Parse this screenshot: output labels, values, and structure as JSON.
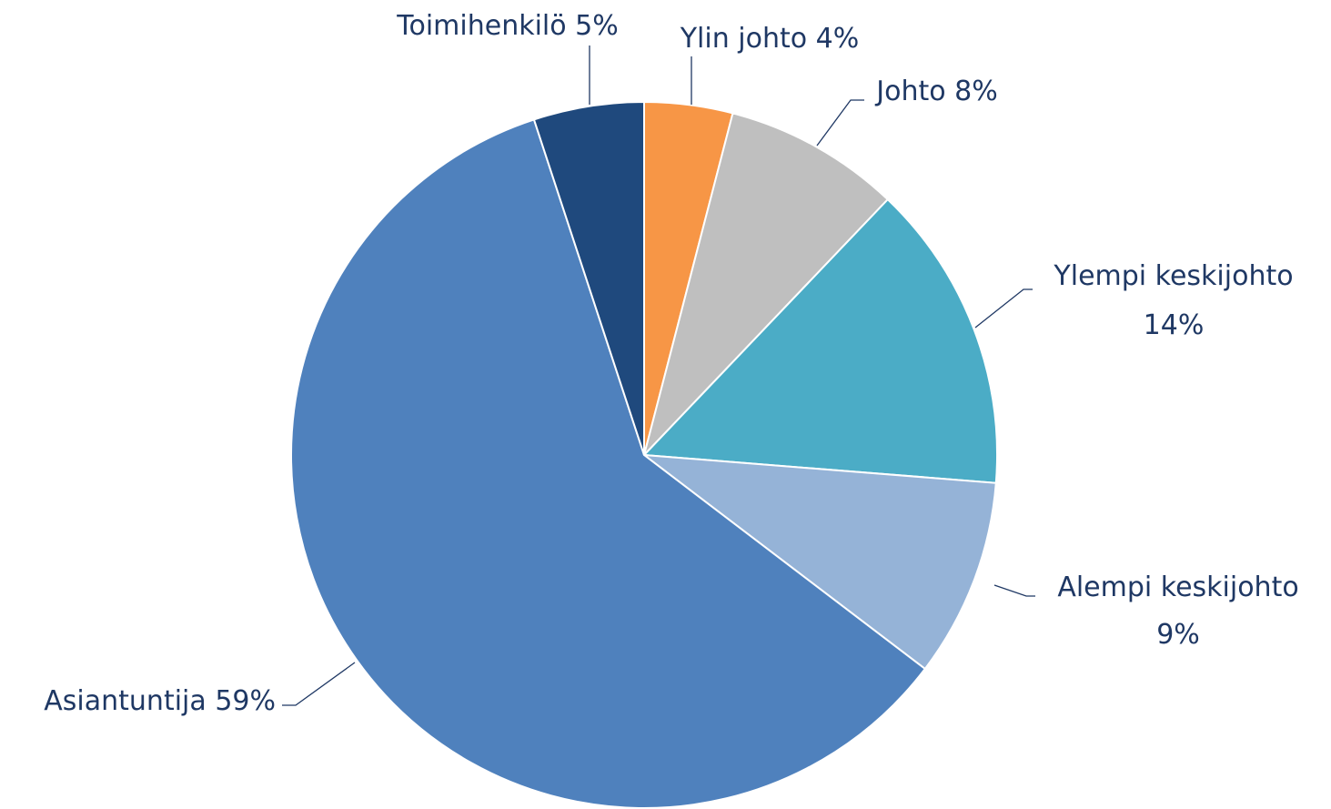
{
  "chart_data": {
    "type": "pie",
    "categories": [
      "Ylin johto",
      "Johto",
      "Ylempi keskijohto",
      "Alempi keskijohto",
      "Asiantuntija",
      "Toimihenkilö"
    ],
    "values": [
      4,
      8,
      14,
      9,
      59,
      5
    ],
    "value_labels": [
      "4%",
      "8%",
      "14%",
      "9%",
      "59%",
      "5%"
    ],
    "colors": [
      "#f79646",
      "#bfbfbf",
      "#4bacc6",
      "#95b3d7",
      "#4f81bd",
      "#1f497d"
    ]
  }
}
